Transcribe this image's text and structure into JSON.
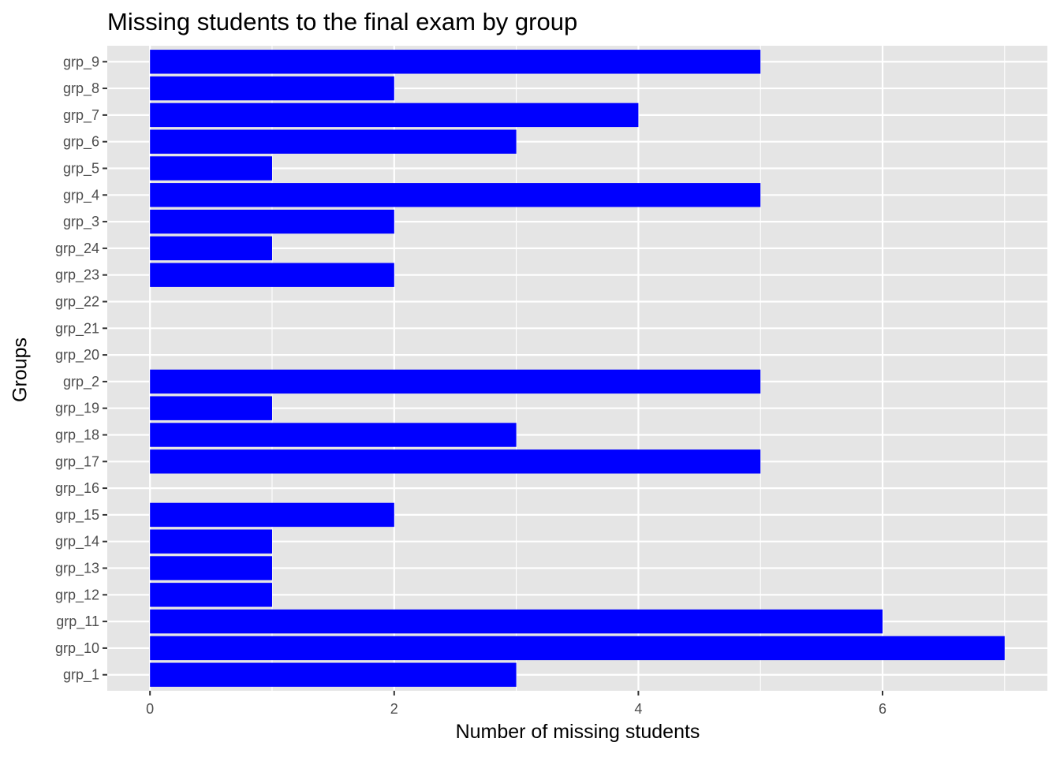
{
  "chart_data": {
    "type": "bar",
    "orientation": "horizontal",
    "title": "Missing students to the final exam by group",
    "xlabel": "Number of missing students",
    "ylabel": "Groups",
    "categories": [
      "grp_1",
      "grp_10",
      "grp_11",
      "grp_12",
      "grp_13",
      "grp_14",
      "grp_15",
      "grp_16",
      "grp_17",
      "grp_18",
      "grp_19",
      "grp_2",
      "grp_20",
      "grp_21",
      "grp_22",
      "grp_23",
      "grp_24",
      "grp_3",
      "grp_4",
      "grp_5",
      "grp_6",
      "grp_7",
      "grp_8",
      "grp_9"
    ],
    "values": [
      3,
      7,
      6,
      1,
      1,
      1,
      2,
      0,
      5,
      3,
      1,
      5,
      0,
      0,
      0,
      2,
      1,
      2,
      5,
      1,
      3,
      4,
      2,
      5
    ],
    "xlim": [
      -0.35,
      7.35
    ],
    "xticks": [
      0,
      2,
      4,
      6
    ],
    "grid": true,
    "bar_color": "#0000ff",
    "panel_color": "#e5e5e5"
  }
}
